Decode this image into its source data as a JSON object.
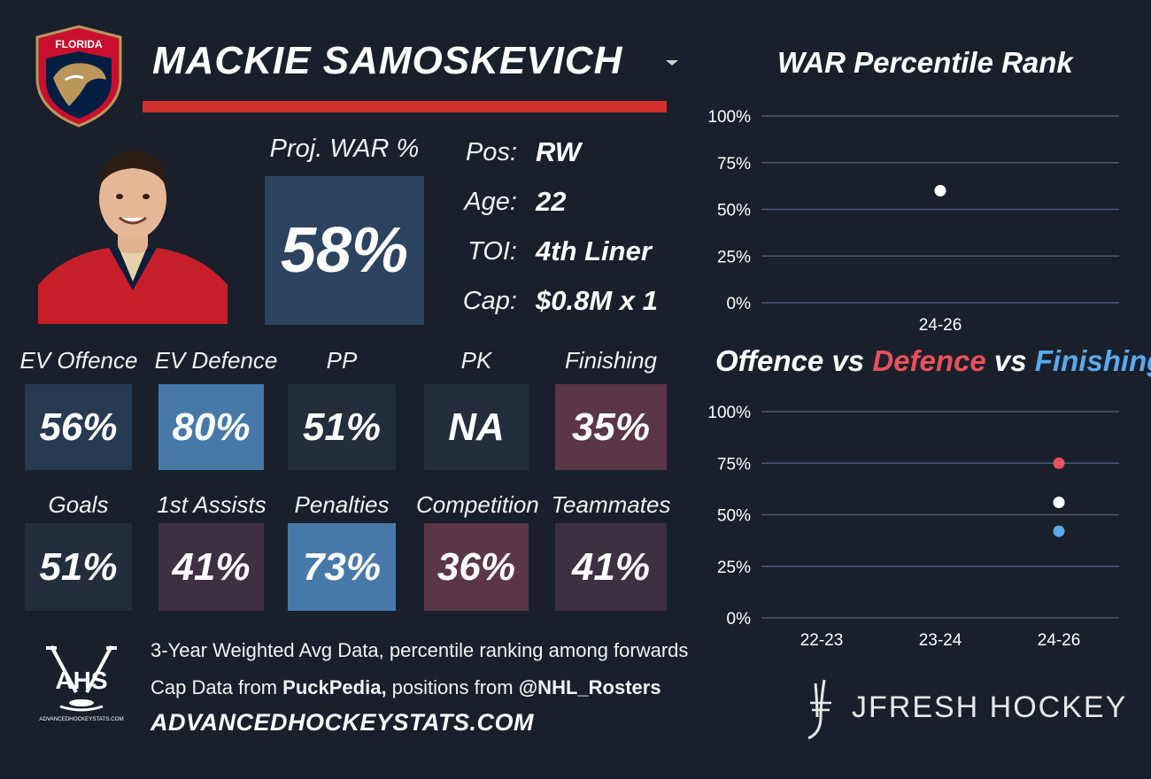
{
  "player": {
    "name": "MACKIE SAMOSKEVICH",
    "team_logo_text": "FLORIDA",
    "proj_war_label": "Proj. WAR %",
    "proj_war_value": "58%",
    "info": [
      {
        "label": "Pos:",
        "value": "RW"
      },
      {
        "label": "Age:",
        "value": "22"
      },
      {
        "label": "TOI:",
        "value": "4th Liner"
      },
      {
        "label": "Cap:",
        "value": "$0.8M x 1"
      }
    ]
  },
  "stats_row1": [
    {
      "label": "EV Offence",
      "value": "56%",
      "color": "#263a52"
    },
    {
      "label": "EV Defence",
      "value": "80%",
      "color": "#4779a8"
    },
    {
      "label": "PP",
      "value": "51%",
      "color": "#232d3c"
    },
    {
      "label": "PK",
      "value": "NA",
      "color": "#232d3c"
    },
    {
      "label": "Finishing",
      "value": "35%",
      "color": "#5a3647"
    }
  ],
  "stats_row2": [
    {
      "label": "Goals",
      "value": "51%",
      "color": "#232d3c"
    },
    {
      "label": "1st Assists",
      "value": "41%",
      "color": "#3d3041"
    },
    {
      "label": "Penalties",
      "value": "73%",
      "color": "#4779a8"
    },
    {
      "label": "Competition",
      "value": "36%",
      "color": "#5a3647"
    },
    {
      "label": "Teammates",
      "value": "41%",
      "color": "#3d3041"
    }
  ],
  "footer": {
    "line1": "3-Year Weighted Avg Data, percentile ranking among forwards",
    "line2_pre": "Cap Data from ",
    "line2_src1": "PuckPedia,",
    "line2_mid": " positions from ",
    "line2_src2": "@NHL_Rosters",
    "site": "ADVANCEDHOCKEYSTATS.COM",
    "ahs_logo_text": "AHS",
    "ahs_logo_small": "ADVANCEDHOCKEYSTATS.COM",
    "brand": "JFRESH HOCKEY"
  },
  "chart_data": [
    {
      "type": "scatter",
      "title": "WAR Percentile Rank",
      "categories": [
        "24-26"
      ],
      "series": [
        {
          "values": [
            60
          ],
          "color": "#ffffff"
        }
      ],
      "ylim": [
        0,
        100
      ],
      "yticks": [
        "0%",
        "25%",
        "50%",
        "75%",
        "100%"
      ],
      "grid": true
    },
    {
      "type": "scatter",
      "title_parts": [
        {
          "text": "Offence",
          "color": "#ffffff"
        },
        {
          "text": " vs ",
          "color": "#ffffff"
        },
        {
          "text": "Defence",
          "color": "#e8505b"
        },
        {
          "text": " vs ",
          "color": "#ffffff"
        },
        {
          "text": "Finishing",
          "color": "#5aa9ec"
        }
      ],
      "categories": [
        "22-23",
        "23-24",
        "24-26"
      ],
      "series": [
        {
          "values": [
            null,
            null,
            56
          ],
          "color": "#ffffff"
        },
        {
          "values": [
            null,
            null,
            75
          ],
          "color": "#e8505b"
        },
        {
          "values": [
            null,
            null,
            42
          ],
          "color": "#5aa9ec"
        }
      ],
      "ylim": [
        0,
        100
      ],
      "yticks": [
        "0%",
        "25%",
        "50%",
        "75%",
        "100%"
      ],
      "grid": true
    }
  ]
}
